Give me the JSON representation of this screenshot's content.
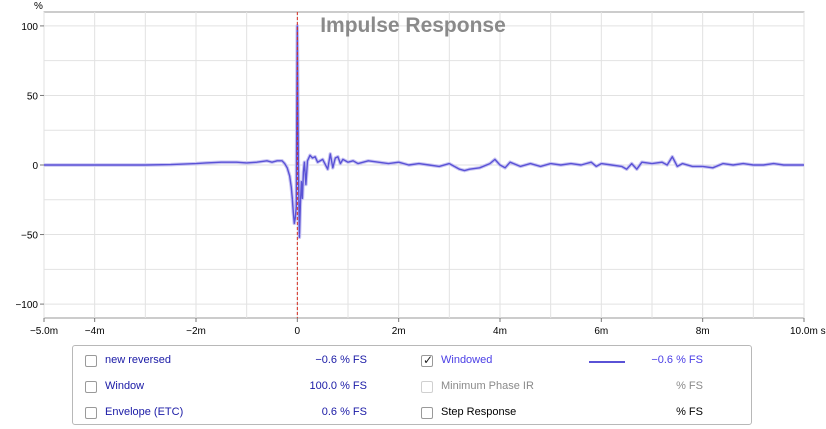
{
  "chart_data": {
    "type": "line",
    "title": "Impulse Response",
    "ylabel": "%",
    "xlabel": "",
    "x_unit": "ms",
    "xlim": [
      -5.0,
      10.0
    ],
    "ylim": [
      -110,
      110
    ],
    "x_ticks": [
      {
        "value": -5,
        "label": "−5.0m"
      },
      {
        "value": -4,
        "label": "−4m"
      },
      {
        "value": -2,
        "label": "−2m"
      },
      {
        "value": 0,
        "label": "0"
      },
      {
        "value": 2,
        "label": "2m"
      },
      {
        "value": 4,
        "label": "4m"
      },
      {
        "value": 6,
        "label": "6m"
      },
      {
        "value": 8,
        "label": "8m"
      },
      {
        "value": 10,
        "label": "10.0m s"
      }
    ],
    "y_ticks": [
      {
        "value": 100,
        "label": "100"
      },
      {
        "value": 50,
        "label": "50"
      },
      {
        "value": 0,
        "label": "0"
      },
      {
        "value": -50,
        "label": "−50"
      },
      {
        "value": -100,
        "label": "−100"
      }
    ],
    "x_grid": [
      -5,
      -4,
      -3,
      -2,
      -1,
      0,
      1,
      2,
      3,
      4,
      5,
      6,
      7,
      8,
      9,
      10
    ],
    "y_grid": [
      -100,
      -75,
      -50,
      -25,
      0,
      25,
      50,
      75,
      100
    ],
    "grid": true,
    "marker_x": 0,
    "marker_color": "#d42a1e",
    "series": [
      {
        "name": "Windowed",
        "color": "#5a52d6",
        "x": [
          -5.0,
          -4.0,
          -3.0,
          -2.5,
          -2.0,
          -1.8,
          -1.5,
          -1.2,
          -1.0,
          -0.8,
          -0.6,
          -0.5,
          -0.4,
          -0.3,
          -0.25,
          -0.2,
          -0.15,
          -0.12,
          -0.1,
          -0.08,
          -0.06,
          -0.04,
          -0.02,
          0.0,
          0.02,
          0.04,
          0.06,
          0.08,
          0.1,
          0.12,
          0.14,
          0.17,
          0.2,
          0.25,
          0.3,
          0.35,
          0.4,
          0.5,
          0.6,
          0.65,
          0.7,
          0.75,
          0.8,
          0.85,
          0.9,
          1.0,
          1.1,
          1.2,
          1.4,
          1.6,
          1.8,
          2.0,
          2.2,
          2.4,
          2.6,
          2.8,
          3.0,
          3.2,
          3.3,
          3.4,
          3.6,
          3.8,
          3.9,
          4.0,
          4.1,
          4.2,
          4.4,
          4.6,
          4.8,
          5.0,
          5.2,
          5.4,
          5.6,
          5.8,
          5.9,
          6.0,
          6.2,
          6.4,
          6.5,
          6.6,
          6.7,
          6.8,
          7.0,
          7.2,
          7.3,
          7.4,
          7.5,
          7.6,
          7.8,
          8.0,
          8.2,
          8.4,
          8.6,
          8.8,
          9.0,
          9.2,
          9.4,
          9.6,
          9.8,
          10.0
        ],
        "y": [
          0,
          0,
          0,
          0.3,
          1,
          1.5,
          2,
          2,
          1.5,
          2,
          3,
          2,
          3,
          3,
          1,
          -2,
          -8,
          -16,
          -24,
          -34,
          -42,
          -38,
          -30,
          100,
          5,
          -52,
          -28,
          -12,
          -24,
          -5,
          2,
          -14,
          3,
          7,
          5,
          6,
          2,
          4,
          -3,
          8,
          -2,
          5,
          6,
          1,
          4,
          2,
          3,
          1,
          3,
          2,
          1,
          2,
          0,
          1,
          0,
          -1,
          1,
          -3,
          -4,
          -3,
          -2,
          1,
          4,
          0,
          -2,
          2,
          -1,
          1,
          -1,
          1,
          0,
          1,
          0,
          2,
          -1,
          1,
          0,
          -1,
          -3,
          1,
          -3,
          2,
          1,
          2,
          0,
          6,
          -1,
          1,
          -1,
          -1,
          -2,
          1,
          0,
          1,
          0,
          0,
          1,
          0,
          0,
          0
        ]
      }
    ]
  },
  "legend": {
    "rows": [
      {
        "left": {
          "label": "new reversed",
          "value": "−0.6 % FS",
          "checked": false,
          "enabled": true,
          "label_color": "#1a1aa6",
          "value_color": "#1a1aa6"
        },
        "right": {
          "label": "Windowed",
          "value": "−0.6 % FS",
          "checked": true,
          "enabled": true,
          "label_color": "#4a3ee6",
          "value_color": "#4a3ee6",
          "swatch": true
        }
      },
      {
        "left": {
          "label": "Window",
          "value": "100.0 % FS",
          "checked": false,
          "enabled": true,
          "label_color": "#1a1aa6",
          "value_color": "#1a1aa6"
        },
        "right": {
          "label": "Minimum Phase IR",
          "value": "% FS",
          "checked": false,
          "enabled": false,
          "label_color": "#8a8a8a",
          "value_color": "#8a8a8a"
        }
      },
      {
        "left": {
          "label": "Envelope (ETC)",
          "value": "0.6 % FS",
          "checked": false,
          "enabled": true,
          "label_color": "#1a1aa6",
          "value_color": "#1a1aa6"
        },
        "right": {
          "label": "Step Response",
          "value": "% FS",
          "checked": false,
          "enabled": true,
          "label_color": "#000000",
          "value_color": "#000000"
        }
      }
    ]
  }
}
